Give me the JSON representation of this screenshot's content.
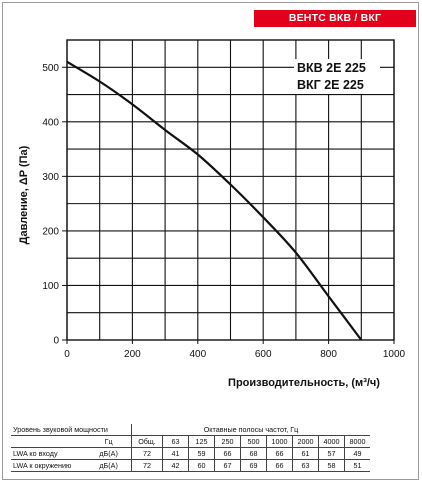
{
  "brand": {
    "label": "ВЕНТС ВКВ / ВКГ",
    "color": "#e3001b"
  },
  "chart_data": {
    "type": "line",
    "models": [
      "ВКВ 2Е 225",
      "ВКГ 2Е 225"
    ],
    "xlabel": "Производительность, (м³/ч)",
    "ylabel": "Давление, ΔP (Па)",
    "xlim": [
      0,
      1000
    ],
    "ylim": [
      0,
      550
    ],
    "x_ticks": [
      "0",
      "200",
      "400",
      "600",
      "800",
      "1000"
    ],
    "y_ticks": [
      "0",
      "100",
      "200",
      "300",
      "400",
      "500"
    ],
    "grid": true,
    "series": [
      {
        "points": [
          [
            0,
            510
          ],
          [
            100,
            474
          ],
          [
            200,
            432
          ],
          [
            300,
            385
          ],
          [
            400,
            340
          ],
          [
            500,
            285
          ],
          [
            600,
            225
          ],
          [
            700,
            160
          ],
          [
            800,
            80
          ],
          [
            900,
            0
          ]
        ]
      }
    ]
  },
  "sound_table": {
    "title": "Уровень звуковой мощности",
    "bands_label": "Октавные полосы частот,  Гц",
    "unit_hz": "Гц",
    "headers": [
      "Общ.",
      "63",
      "125",
      "250",
      "500",
      "1000",
      "2000",
      "4000",
      "8000"
    ],
    "rows": [
      {
        "label": "LWA ко входу",
        "unit": "дБ(А)",
        "values": [
          "72",
          "41",
          "59",
          "66",
          "68",
          "66",
          "61",
          "57",
          "49"
        ]
      },
      {
        "label": "LWA к окружению",
        "unit": "дБ(А)",
        "values": [
          "72",
          "42",
          "60",
          "67",
          "69",
          "66",
          "63",
          "58",
          "51"
        ]
      }
    ]
  }
}
